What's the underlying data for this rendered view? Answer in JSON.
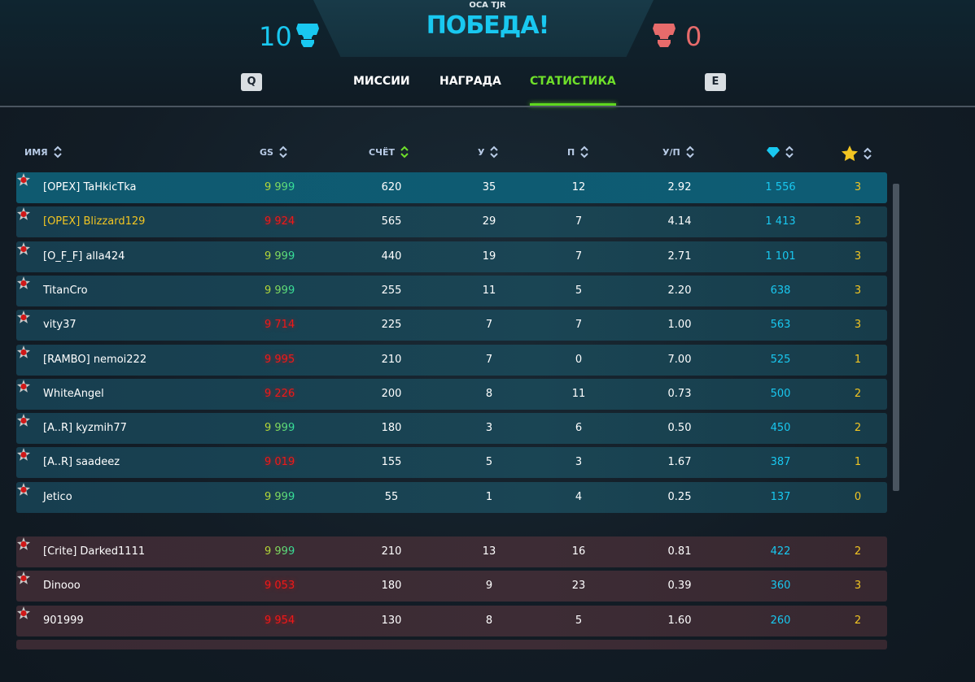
{
  "header": {
    "subtitle": "OCA TJR",
    "result": "ПОБЕДА!",
    "team_score": "10",
    "enemy_score": "0",
    "team_color": "#19c8f0",
    "enemy_color": "#e76b6b",
    "team_icon": "skull-icon",
    "enemy_icon": "skull-icon"
  },
  "tabs": {
    "prev_key": "Q",
    "next_key": "E",
    "items": [
      {
        "label": "МИССИИ"
      },
      {
        "label": "НАГРАДА"
      },
      {
        "label": "СТАТИСТИКА",
        "active": true
      }
    ]
  },
  "columns": {
    "name": "ИМЯ",
    "gs": "GS",
    "score": "СЧЁТ",
    "kills": "У",
    "deaths": "П",
    "kd": "У/П",
    "gems_icon": "diamond-icon",
    "stars_icon": "star-icon"
  },
  "team": [
    {
      "name": "[OPEX] TaHkicTka",
      "gs": "9 999",
      "score": "620",
      "k": "35",
      "d": "12",
      "kd": "2.92",
      "gems": "1 556",
      "stars": "3",
      "highlight": true
    },
    {
      "name": "[OPEX] Blizzard129",
      "gs": "9 924",
      "score": "565",
      "k": "29",
      "d": "7",
      "kd": "4.14",
      "gems": "1 413",
      "stars": "3",
      "clan": true
    },
    {
      "name": "[O_F_F] alla424",
      "gs": "9 999",
      "score": "440",
      "k": "19",
      "d": "7",
      "kd": "2.71",
      "gems": "1 101",
      "stars": "3"
    },
    {
      "name": "TitanCro",
      "gs": "9 999",
      "score": "255",
      "k": "11",
      "d": "5",
      "kd": "2.20",
      "gems": "638",
      "stars": "3"
    },
    {
      "name": "vity37",
      "gs": "9 714",
      "score": "225",
      "k": "7",
      "d": "7",
      "kd": "1.00",
      "gems": "563",
      "stars": "3"
    },
    {
      "name": "[RAMBO] nemoi222",
      "gs": "9 995",
      "score": "210",
      "k": "7",
      "d": "0",
      "kd": "7.00",
      "gems": "525",
      "stars": "1"
    },
    {
      "name": "WhiteAngel",
      "gs": "9 226",
      "score": "200",
      "k": "8",
      "d": "11",
      "kd": "0.73",
      "gems": "500",
      "stars": "2"
    },
    {
      "name": "[A..R] kyzmih77",
      "gs": "9 999",
      "score": "180",
      "k": "3",
      "d": "6",
      "kd": "0.50",
      "gems": "450",
      "stars": "2"
    },
    {
      "name": "[A..R] saadeez",
      "gs": "9 019",
      "score": "155",
      "k": "5",
      "d": "3",
      "kd": "1.67",
      "gems": "387",
      "stars": "1"
    },
    {
      "name": "Jetico",
      "gs": "9 999",
      "score": "55",
      "k": "1",
      "d": "4",
      "kd": "0.25",
      "gems": "137",
      "stars": "0"
    }
  ],
  "enemy": [
    {
      "name": "[Crite] Darked1111",
      "gs": "9 999",
      "score": "210",
      "k": "13",
      "d": "16",
      "kd": "0.81",
      "gems": "422",
      "stars": "2"
    },
    {
      "name": "Dinooo",
      "gs": "9 053",
      "score": "180",
      "k": "9",
      "d": "23",
      "kd": "0.39",
      "gems": "360",
      "stars": "3"
    },
    {
      "name": "901999",
      "gs": "9 954",
      "score": "130",
      "k": "8",
      "d": "5",
      "kd": "1.60",
      "gems": "260",
      "stars": "2"
    }
  ]
}
